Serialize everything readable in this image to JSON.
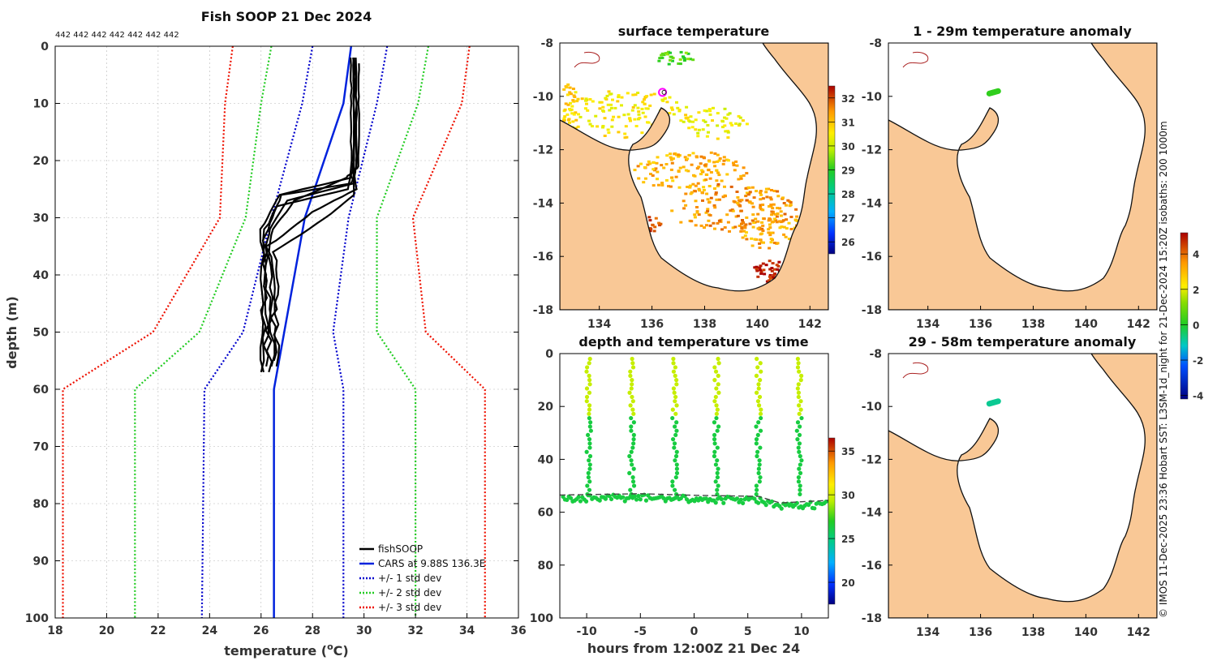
{
  "colors": {
    "obs": "#000000",
    "cars": "#0022dd",
    "std1": "#0000cc",
    "std2": "#22cc22",
    "std3": "#ee1100",
    "land": "#f9c896",
    "coast": "#111111",
    "river": "#aa2222",
    "grid": "#b8b8b8"
  },
  "chart_data": [
    {
      "id": "profile",
      "type": "line",
      "title": "Fish SOOP 21 Dec 2024",
      "top_annotation": "442 442 442 442 442 442 442",
      "xlabel": "temperature (°C)",
      "xlabel_parts": {
        "pre": "temperature (",
        "sup": "o",
        "post": "C)"
      },
      "ylabel": "depth (m)",
      "xlim": [
        18,
        36
      ],
      "ylim": [
        0,
        100
      ],
      "y_inverted": true,
      "xticks": [
        18,
        20,
        22,
        24,
        26,
        28,
        30,
        32,
        34,
        36
      ],
      "yticks": [
        0,
        10,
        20,
        30,
        40,
        50,
        60,
        70,
        80,
        90,
        100
      ],
      "grid": true,
      "legend_position": "bottom-right",
      "legend": [
        {
          "label": "fishSOOP",
          "style": "solid-black"
        },
        {
          "label": "CARS at 9.88S 136.3E",
          "style": "solid-blue"
        },
        {
          "label": "+/- 1 std dev",
          "style": "dotted-blue"
        },
        {
          "label": "+/- 2 std dev",
          "style": "dotted-green"
        },
        {
          "label": "+/- 3 std dev",
          "style": "dotted-red"
        }
      ],
      "cars_mean": {
        "depth": [
          0,
          10,
          30,
          50,
          60,
          100
        ],
        "temp": [
          29.5,
          29.2,
          27.7,
          26.9,
          26.5,
          26.5
        ]
      },
      "std_bands": [
        {
          "name": "-1",
          "depth": [
            0,
            10,
            30,
            50,
            60,
            100
          ],
          "temp": [
            28.0,
            27.6,
            26.4,
            25.3,
            23.8,
            23.7
          ]
        },
        {
          "name": "+1",
          "depth": [
            0,
            10,
            30,
            50,
            60,
            100
          ],
          "temp": [
            30.9,
            30.5,
            29.4,
            28.8,
            29.2,
            29.2
          ]
        },
        {
          "name": "-2",
          "depth": [
            0,
            10,
            30,
            50,
            60,
            100
          ],
          "temp": [
            26.4,
            26.0,
            25.4,
            23.6,
            21.1,
            21.1
          ]
        },
        {
          "name": "+2",
          "depth": [
            0,
            10,
            30,
            50,
            60,
            100
          ],
          "temp": [
            32.5,
            32.1,
            30.5,
            30.5,
            32.0,
            32.0
          ]
        },
        {
          "name": "-3",
          "depth": [
            0,
            10,
            30,
            50,
            60,
            100
          ],
          "temp": [
            24.9,
            24.6,
            24.4,
            21.8,
            18.3,
            18.3
          ]
        },
        {
          "name": "+3",
          "depth": [
            0,
            10,
            30,
            50,
            60,
            100
          ],
          "temp": [
            34.1,
            33.8,
            31.9,
            32.4,
            34.7,
            34.7
          ]
        }
      ],
      "obs_profiles": [
        {
          "depth": [
            2,
            10,
            20,
            23,
            26,
            32,
            45,
            57
          ],
          "temp": [
            29.6,
            29.6,
            29.6,
            29.5,
            26.7,
            26.0,
            26.1,
            26.0
          ]
        },
        {
          "depth": [
            2,
            10,
            21,
            24,
            27,
            33,
            45,
            56
          ],
          "temp": [
            29.7,
            29.7,
            29.7,
            29.6,
            27.0,
            26.2,
            26.2,
            26.2
          ]
        },
        {
          "depth": [
            2,
            10,
            20,
            25,
            28,
            34,
            46,
            57
          ],
          "temp": [
            29.5,
            29.5,
            29.5,
            29.4,
            26.6,
            26.1,
            26.3,
            26.3
          ]
        },
        {
          "depth": [
            3,
            10,
            21,
            23,
            27,
            33,
            44,
            56
          ],
          "temp": [
            29.8,
            29.8,
            29.8,
            29.3,
            27.3,
            26.3,
            26.4,
            26.4
          ]
        },
        {
          "depth": [
            2,
            10,
            22,
            25,
            29,
            35,
            46,
            55
          ],
          "temp": [
            29.6,
            29.6,
            29.6,
            29.7,
            28.0,
            26.3,
            26.5,
            26.5
          ]
        },
        {
          "depth": [
            2,
            10,
            21,
            24,
            26,
            32,
            44,
            57
          ],
          "temp": [
            29.7,
            29.7,
            29.7,
            29.5,
            26.8,
            26.2,
            26.1,
            26.1
          ]
        },
        {
          "depth": [
            2,
            10,
            22,
            26,
            30,
            36,
            45,
            56
          ],
          "temp": [
            29.6,
            29.6,
            29.6,
            29.6,
            28.5,
            26.5,
            26.6,
            26.6
          ]
        }
      ]
    },
    {
      "id": "sst_map",
      "type": "heatmap",
      "title": "surface temperature",
      "xlim": [
        132.5,
        142.7
      ],
      "ylim": [
        -18,
        -8
      ],
      "xticks": [
        134,
        136,
        138,
        140,
        142
      ],
      "yticks": [
        -8,
        -10,
        -12,
        -14,
        -16,
        -18
      ],
      "colorbar": {
        "min": 25.5,
        "max": 32.5,
        "ticks": [
          26,
          27,
          28,
          29,
          30,
          31,
          32
        ]
      },
      "marker": {
        "lon": 136.4,
        "lat": -9.85,
        "label": "fishSOOP location"
      }
    },
    {
      "id": "depth_time",
      "type": "scatter",
      "title": "depth and temperature vs time",
      "xlabel": "hours from 12:00Z 21 Dec 24",
      "xlim": [
        -12.5,
        12.5
      ],
      "ylim": [
        0,
        100
      ],
      "y_inverted": true,
      "xticks": [
        -10,
        -5,
        0,
        5,
        10
      ],
      "yticks": [
        0,
        20,
        40,
        60,
        80,
        100
      ],
      "colorbar": {
        "min": 17.5,
        "max": 36.5,
        "ticks": [
          20,
          25,
          30,
          35
        ]
      },
      "casts_hours": [
        -9.8,
        -5.8,
        -1.8,
        2.1,
        6.0,
        9.8
      ],
      "seabed": {
        "hours": [
          -12.5,
          -5,
          0,
          6,
          8,
          12.5
        ],
        "depth": [
          53.5,
          53.0,
          53.6,
          54.0,
          56.5,
          55.5
        ]
      },
      "thermocline_depth": 24,
      "surface_temp_c": 29.6,
      "bottom_temp_c": 26.3
    },
    {
      "id": "anom1",
      "type": "heatmap",
      "title": "1 - 29m temperature anomaly",
      "xlim": [
        132.5,
        142.7
      ],
      "ylim": [
        -18,
        -8
      ],
      "xticks": [
        134,
        136,
        138,
        140,
        142
      ],
      "yticks": [
        -8,
        -10,
        -12,
        -14,
        -16,
        -18
      ],
      "anomaly_patch": {
        "lon": 136.5,
        "lat": -9.85,
        "value": 0.2
      }
    },
    {
      "id": "anom2",
      "type": "heatmap",
      "title": "29 - 58m temperature anomaly",
      "xlim": [
        132.5,
        142.7
      ],
      "ylim": [
        -18,
        -8
      ],
      "xticks": [
        134,
        136,
        138,
        140,
        142
      ],
      "yticks": [
        -8,
        -10,
        -12,
        -14,
        -16,
        -18
      ],
      "anomaly_patch": {
        "lon": 136.5,
        "lat": -9.85,
        "value": -0.8
      },
      "colorbar": {
        "min": -4.2,
        "max": 5.2,
        "ticks": [
          -4,
          -2,
          0,
          2,
          4
        ]
      }
    }
  ],
  "credit": "© IMOS 11-Dec-2025 23:36 Hobart SST: L3SM-1d_night for 21-Dec-2024 15:20Z isobaths: 200  1000m"
}
